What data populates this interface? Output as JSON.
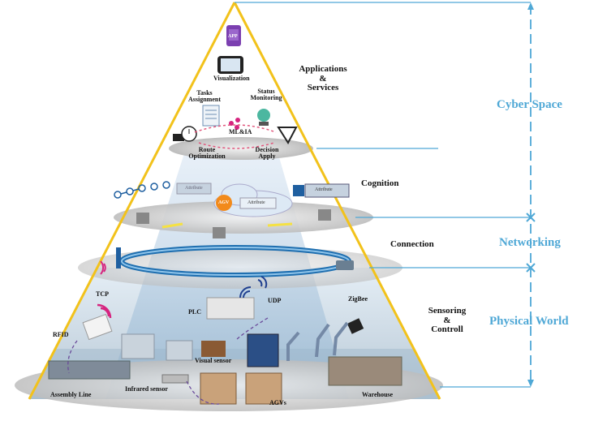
{
  "layers": {
    "applications": {
      "line1": "Applications",
      "line2": "&",
      "line3": "Services"
    },
    "cognition": "Cognition",
    "connection": "Connection",
    "sensoring": {
      "line1": "Sensoring",
      "line2": "&",
      "line3": "Controll"
    }
  },
  "zones": {
    "cyber": "Cyber Space",
    "networking": "Networking",
    "physical": "Physical World"
  },
  "apps": {
    "app_icon": "APP",
    "visualization": "Visualization",
    "tasks": {
      "line1": "Tasks",
      "line2": "Assignment"
    },
    "status": {
      "line1": "Status",
      "line2": "Monitoring"
    },
    "ml": "ML&IA",
    "route": {
      "line1": "Route",
      "line2": "Optimization"
    },
    "decision": {
      "line1": "Decision",
      "line2": "Apply"
    }
  },
  "cognition_items": {
    "attribute_left": "Attribute",
    "attribute_center": "Attribute",
    "attribute_right": "Attribute",
    "agv_tag": "AGV"
  },
  "physical_items": {
    "tcp": "TCP",
    "udp": "UDP",
    "zigbee": "ZigBee",
    "plc": "PLC",
    "rfid": "RFID",
    "visual_sensor": "Visual sensor",
    "infrared_sensor": "Infrared sensor",
    "assembly_line": "Assembly Line",
    "agvs": "AGVs",
    "warehouse": "Warehouse"
  },
  "colors": {
    "pyramid_edge": "#f2c21b",
    "zone_text": "#4fa8d6",
    "bracket": "#4fa8d6",
    "ring": "#1f6fb0",
    "beam": "#c9dff0"
  }
}
